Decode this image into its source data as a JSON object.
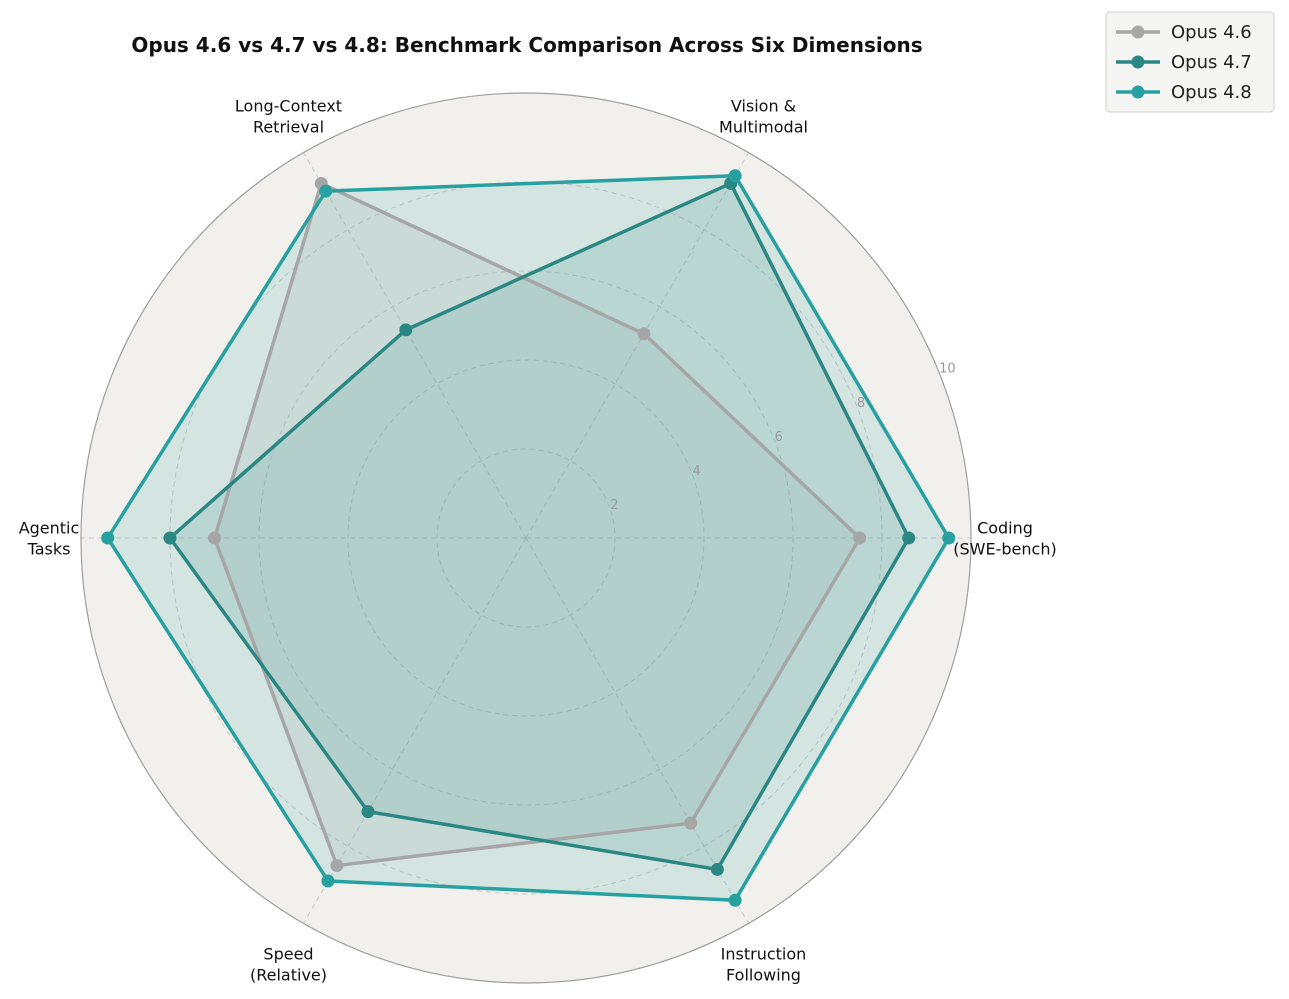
{
  "chart_data": {
    "type": "radar",
    "title": "Opus 4.6 vs 4.7 vs 4.8: Benchmark Comparison Across Six Dimensions",
    "categories": [
      [
        "Coding",
        "(SWE-bench)"
      ],
      [
        "Vision &",
        "Multimodal"
      ],
      [
        "Long-Context",
        "Retrieval"
      ],
      [
        "Agentic",
        "Tasks"
      ],
      [
        "Speed",
        "(Relative)"
      ],
      [
        "Instruction",
        "Following"
      ]
    ],
    "rlim": [
      0,
      10
    ],
    "rticks": [
      "2",
      "4",
      "6",
      "8",
      "10"
    ],
    "grid": true,
    "legend_position": "top-right",
    "series": [
      {
        "name": "Opus 4.6",
        "values": [
          7.5,
          5.3,
          9.2,
          7.0,
          8.5,
          7.4
        ],
        "color": "#a6a6a6"
      },
      {
        "name": "Opus 4.7",
        "values": [
          8.6,
          9.2,
          5.4,
          8.0,
          7.1,
          8.6
        ],
        "color": "#2a8784"
      },
      {
        "name": "Opus 4.8",
        "values": [
          9.5,
          9.4,
          9.0,
          9.4,
          8.9,
          9.4
        ],
        "color": "#26a0a0"
      }
    ],
    "colors": {
      "background": "#f2f0ec",
      "spine": "#9e9e9e",
      "grid": "#c8c8c8"
    }
  }
}
